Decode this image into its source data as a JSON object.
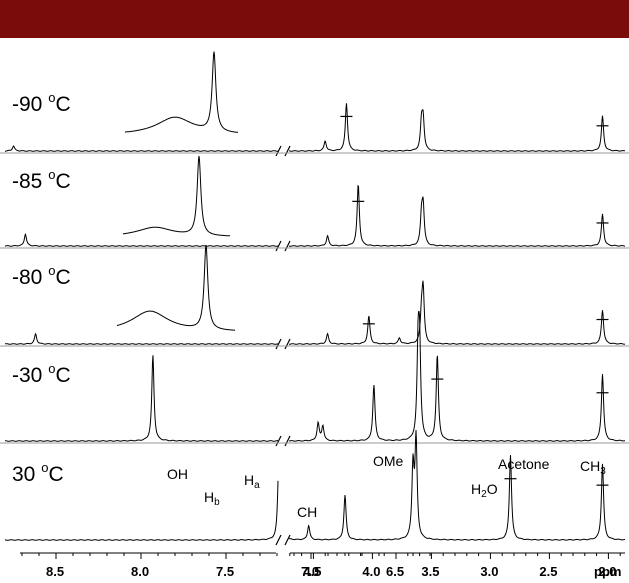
{
  "chart_data": {
    "type": "line",
    "xlabel": "ppm",
    "xticks": [
      "8.5",
      "8.0",
      "7.5",
      "7.0",
      "6.5",
      "4.5",
      "4.0",
      "3.5",
      "3.0",
      "2.5",
      "2.0",
      "ppm"
    ],
    "axis_break": [
      6.3,
      4.8
    ],
    "spectra": [
      {
        "label": "-90",
        "unit": "°C",
        "peaks": [
          {
            "ppm": 8.75,
            "height": 0.05
          },
          {
            "ppm": 6.35,
            "height": 0.27
          },
          {
            "ppm": 4.4,
            "height": 0.1
          },
          {
            "ppm": 4.22,
            "height": 0.48,
            "cross": true
          },
          {
            "ppm": 3.57,
            "height": 0.3
          },
          {
            "ppm": 2.05,
            "height": 0.35,
            "cross": true
          },
          {
            "ppm": 1.4,
            "height": 0.16
          }
        ],
        "inset": {
          "broad_height": 0.22,
          "sharp_height": 0.92
        }
      },
      {
        "label": "-85",
        "unit": "°C",
        "peaks": [
          {
            "ppm": 8.68,
            "height": 0.12
          },
          {
            "ppm": 6.35,
            "height": 0.28
          },
          {
            "ppm": 4.38,
            "height": 0.1
          },
          {
            "ppm": 4.12,
            "height": 0.62,
            "cross": true
          },
          {
            "ppm": 3.57,
            "height": 0.38
          },
          {
            "ppm": 2.05,
            "height": 0.32,
            "cross": true
          },
          {
            "ppm": 1.4,
            "height": 0.18
          }
        ],
        "inset": {
          "broad_height": 0.12,
          "sharp_height": 0.92
        }
      },
      {
        "label": "-80",
        "unit": "°C",
        "peaks": [
          {
            "ppm": 8.62,
            "height": 0.1
          },
          {
            "ppm": 6.48,
            "height": 0.06
          },
          {
            "ppm": 6.35,
            "height": 0.28
          },
          {
            "ppm": 4.38,
            "height": 0.1
          },
          {
            "ppm": 4.03,
            "height": 0.28,
            "cross": true
          },
          {
            "ppm": 3.57,
            "height": 0.52
          },
          {
            "ppm": 2.05,
            "height": 0.34,
            "cross": true
          },
          {
            "ppm": 1.4,
            "height": 0.24
          }
        ],
        "inset": {
          "broad_height": 0.26,
          "sharp_height": 0.98
        }
      },
      {
        "label": "-30",
        "unit": "°C",
        "peaks": [
          {
            "ppm": 7.93,
            "height": 0.86
          },
          {
            "ppm": 6.63,
            "height": 0.56
          },
          {
            "ppm": 6.37,
            "height": 0.86
          },
          {
            "ppm": 4.46,
            "height": 0.18
          },
          {
            "ppm": 4.42,
            "height": 0.15
          },
          {
            "ppm": 3.6,
            "height": 0.86
          },
          {
            "ppm": 3.45,
            "height": 0.86,
            "cross": true
          },
          {
            "ppm": 2.05,
            "height": 0.67,
            "cross": true
          },
          {
            "ppm": 1.42,
            "height": 0.66
          },
          {
            "ppm": 1.39,
            "height": 0.66
          }
        ]
      },
      {
        "label": "30",
        "unit": "°C",
        "peaks": [
          {
            "ppm": 7.19,
            "height": 0.68,
            "label": "OH"
          },
          {
            "ppm": 6.8,
            "height": 0.4,
            "label": "Hb"
          },
          {
            "ppm": 6.4,
            "height": 0.64,
            "label": "Ha"
          },
          {
            "ppm": 4.54,
            "height": 0.13,
            "label": "CH"
          },
          {
            "ppm": 3.63,
            "height": 0.88,
            "label": "OMe"
          },
          {
            "ppm": 2.83,
            "height": 0.76,
            "label": "H2O",
            "cross": true
          },
          {
            "ppm": 2.05,
            "height": 0.68,
            "label": "Acetone",
            "cross": true
          },
          {
            "ppm": 1.48,
            "height": 0.74,
            "label": "CH3"
          }
        ]
      }
    ]
  },
  "labels": {
    "temps": [
      "-90",
      "-85",
      "-80",
      "-30",
      "30"
    ],
    "deg": "o",
    "C": "C",
    "oh": "OH",
    "hb_main": "H",
    "hb_sub": "b",
    "ha_main": "H",
    "ha_sub": "a",
    "ch": "CH",
    "ome": "OMe",
    "h2o_a": "H",
    "h2o_sub": "2",
    "h2o_b": "O",
    "acetone": "Acetone",
    "ch3_main": "CH",
    "ch3_sub": "3"
  }
}
